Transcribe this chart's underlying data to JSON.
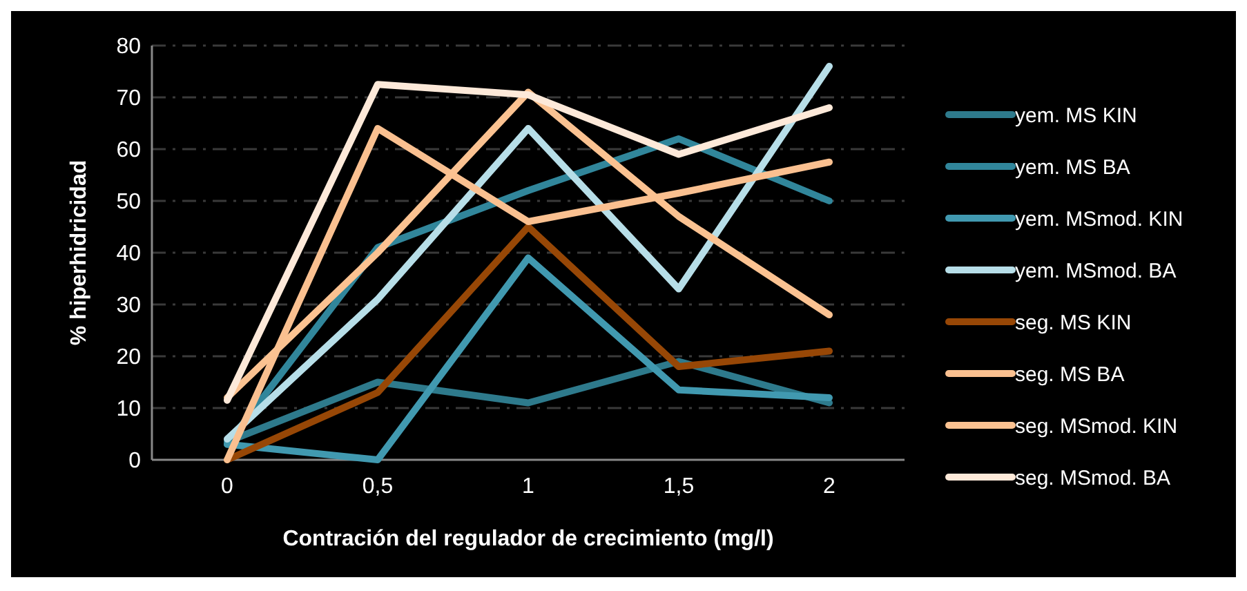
{
  "chart_data": {
    "type": "line",
    "xlabel": "Contración del regulador de crecimiento (mg/l)",
    "ylabel": "% hiperhidricidad",
    "categories": [
      "0",
      "0,5",
      "1",
      "1,5",
      "2"
    ],
    "ylim": [
      0,
      80
    ],
    "yticks": [
      0,
      10,
      20,
      30,
      40,
      50,
      60,
      70,
      80
    ],
    "grid": "y",
    "legend": "right",
    "marker": "none",
    "line_style": "solid",
    "series": [
      {
        "name": "yem. MS KIN",
        "color": "#2e7a8c",
        "values": [
          3.5,
          15,
          11,
          19,
          11
        ]
      },
      {
        "name": "yem. MS BA",
        "color": "#31869b",
        "values": [
          3,
          41,
          52,
          62,
          50
        ]
      },
      {
        "name": "yem. MSmod. KIN",
        "color": "#4199b0",
        "values": [
          3,
          0,
          39,
          13.5,
          12
        ]
      },
      {
        "name": "yem. MSmod. BA",
        "color": "#b7dee8",
        "values": [
          4,
          31,
          64,
          33,
          76
        ]
      },
      {
        "name": "seg. MS KIN",
        "color": "#974706",
        "values": [
          0,
          13,
          45,
          18,
          21
        ]
      },
      {
        "name": "seg. MS BA",
        "color": "#fac090",
        "values": [
          0,
          64,
          46,
          51.5,
          57.5
        ]
      },
      {
        "name": "seg. MSmod. KIN",
        "color": "#fbc291",
        "values": [
          12,
          40,
          71,
          47,
          28
        ]
      },
      {
        "name": "seg. MSmod. BA",
        "color": "#fde9d9",
        "values": [
          11.5,
          72.5,
          70.5,
          59,
          68
        ]
      }
    ]
  }
}
